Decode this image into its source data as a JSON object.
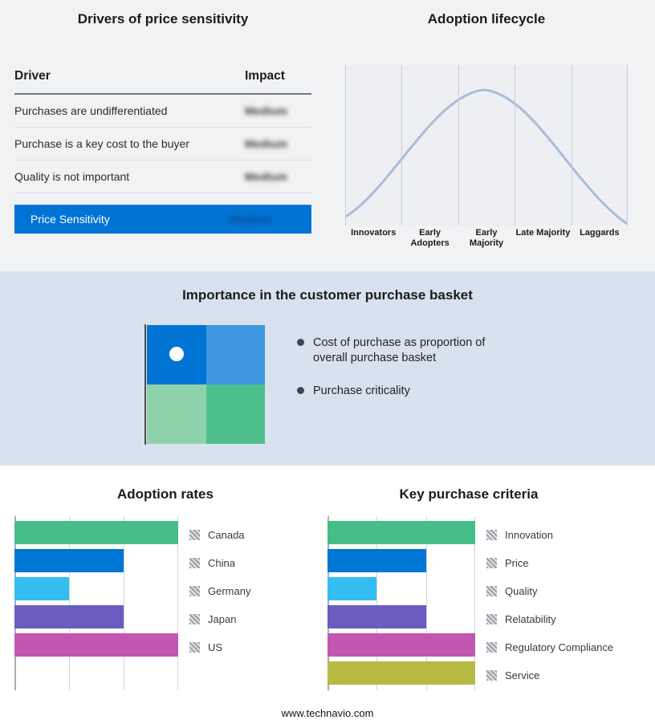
{
  "drivers": {
    "title": "Drivers of price sensitivity",
    "columns": {
      "driver": "Driver",
      "impact": "Impact"
    },
    "rows": [
      {
        "driver": "Purchases are undifferentiated",
        "impact": "Medium"
      },
      {
        "driver": "Purchase is a key cost to the buyer",
        "impact": "Medium"
      },
      {
        "driver": "Quality is not important",
        "impact": "Medium"
      }
    ],
    "highlight": {
      "driver": "Price Sensitivity",
      "impact": "Medium"
    },
    "highlight_color": "#0074d4",
    "impact_values_blurred": true
  },
  "lifecycle": {
    "title": "Adoption lifecycle",
    "stages": [
      "Innovators",
      "Early Adopters",
      "Early Majority",
      "Late Majority",
      "Laggards"
    ],
    "curve_color": "#a9bdd8",
    "plot_bg": "#edeff3",
    "gridline_color": "#c9cdd6"
  },
  "basket": {
    "title": "Importance in the customer purchase basket",
    "bullets": [
      "Cost of purchase as proportion of overall purchase basket",
      "Purchase criticality"
    ],
    "quadrant_colors": {
      "top_left": "#0074d4",
      "top_right": "#3e97de",
      "bottom_left": "#8ed2ac",
      "bottom_right": "#4dc08d"
    },
    "dot_color": "#ffffff",
    "band_bg": "#d8e2ee"
  },
  "chart_data": [
    {
      "type": "line",
      "title": "Adoption lifecycle",
      "categories": [
        "Innovators",
        "Early Adopters",
        "Early Majority",
        "Late Majority",
        "Laggards"
      ],
      "shape": "bell-curve",
      "peak_category": "Early Majority",
      "grid": true,
      "legend_position": "none"
    },
    {
      "type": "bar",
      "orientation": "horizontal",
      "title": "Adoption rates",
      "categories": [
        "Canada",
        "China",
        "Germany",
        "Japan",
        "US"
      ],
      "values": [
        3,
        2,
        1,
        2,
        3
      ],
      "xlim": [
        0,
        3
      ],
      "colors": [
        "#45bd87",
        "#0077d4",
        "#33bdf0",
        "#6a5cc0",
        "#c257b2"
      ],
      "grid": true,
      "legend_position": "right"
    },
    {
      "type": "bar",
      "orientation": "horizontal",
      "title": "Key purchase criteria",
      "categories": [
        "Innovation",
        "Price",
        "Quality",
        "Relatability",
        "Regulatory Compliance",
        "Service"
      ],
      "values": [
        3,
        2,
        1,
        2,
        3,
        3
      ],
      "xlim": [
        0,
        3
      ],
      "colors": [
        "#45bd87",
        "#0077d4",
        "#33bdf0",
        "#6a5cc0",
        "#c257b2",
        "#b8b944"
      ],
      "grid": true,
      "legend_position": "right"
    }
  ],
  "footer": {
    "url": "www.technavio.com"
  }
}
